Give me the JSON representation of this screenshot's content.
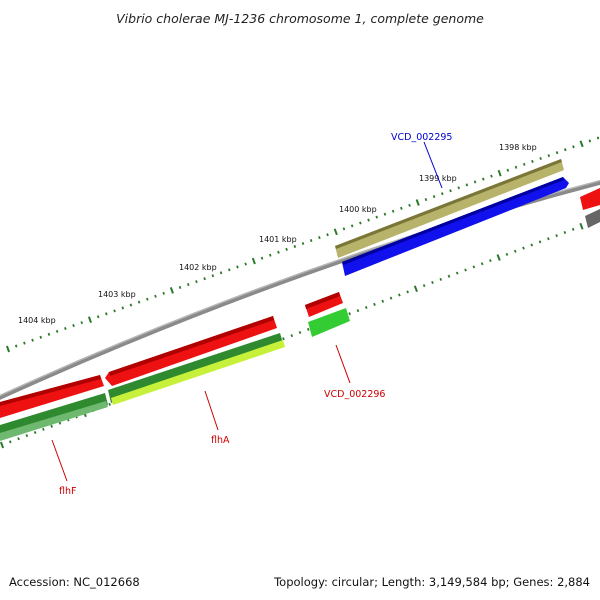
{
  "title": "Vibrio cholerae MJ-1236 chromosome 1, complete genome",
  "footer": {
    "accession": "Accession: NC_012668",
    "summary": "Topology: circular; Length: 3,149,584 bp; Genes: 2,884"
  },
  "ticks": [
    "1398 kbp",
    "1399 kbp",
    "1400 kbp",
    "1401 kbp",
    "1402 kbp",
    "1403 kbp",
    "1404 kbp"
  ],
  "gene_labels": [
    {
      "text": "VCD_002295",
      "color": "#0000cc"
    },
    {
      "text": "VCD_002296",
      "color": "#cc0000"
    },
    {
      "text": "flhA",
      "color": "#cc0000"
    },
    {
      "text": "flhF",
      "color": "#cc0000"
    }
  ],
  "colors": {
    "backbone": "#8a8a8a",
    "cds_red": "#ee1111",
    "cds_green_dark": "#2f8a2f",
    "cds_green_bright": "#33cc33",
    "cds_yellowgreen": "#c6f03a",
    "cds_olive": "#b7b36a",
    "cds_blue": "#1111ee",
    "cds_gray": "#666666",
    "tick_green": "#2b7a2b"
  }
}
